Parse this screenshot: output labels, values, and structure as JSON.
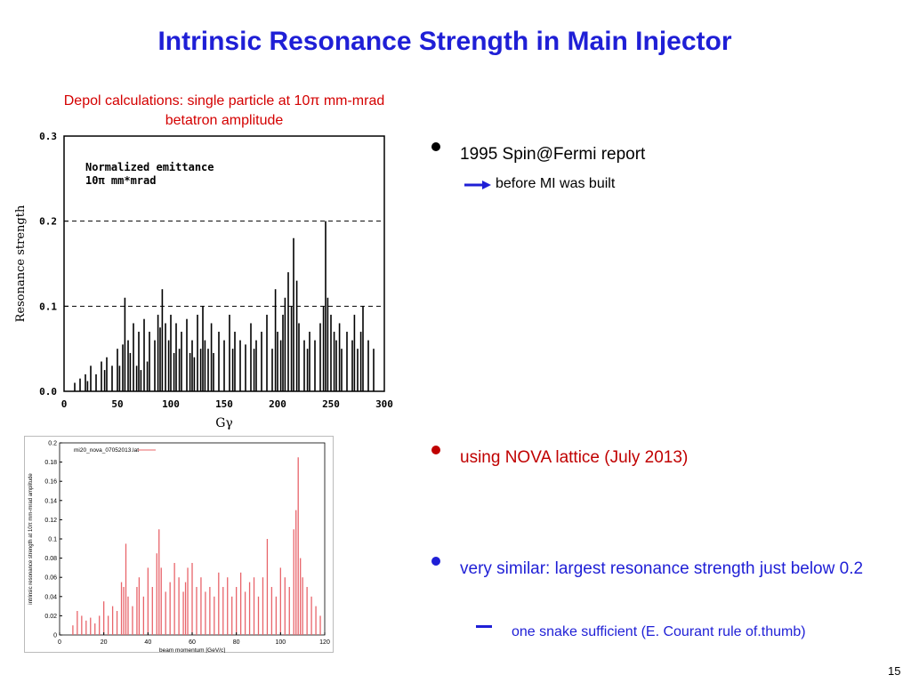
{
  "slide": {
    "title": "Intrinsic Resonance Strength in Main Injector",
    "subtitle_line1": "Depol calculations: single particle at 10π mm-mrad",
    "subtitle_line2": "betatron amplitude",
    "page_number": "15"
  },
  "bullets": {
    "b1": "1995 Spin@Fermi report",
    "b1_sub": "before MI was built",
    "b2": "using NOVA lattice (July 2013)",
    "b3": "very similar: largest resonance strength just below 0.2",
    "b3_sub": "one snake sufficient (E. Courant rule of.thumb)"
  },
  "colors": {
    "title": "#1f1fd6",
    "red": "#c00000",
    "blue": "#1f1fd6",
    "pink": "#e8646a"
  },
  "chart_data": [
    {
      "type": "bar",
      "ylabel": "Resonance strength",
      "xlabel": "Gγ",
      "annotation_line1": "Normalized emittance",
      "annotation_line2": "10π mm*mrad",
      "xlim": [
        0,
        300
      ],
      "ylim": [
        0,
        0.3
      ],
      "xticks": [
        0,
        50,
        100,
        150,
        200,
        250,
        300
      ],
      "yticks": [
        "0.0",
        "0.1",
        "0.2",
        "0.3"
      ],
      "reference_lines": [
        0.1,
        0.2
      ],
      "x": [
        10,
        15,
        20,
        22,
        25,
        30,
        35,
        38,
        40,
        45,
        50,
        52,
        55,
        57,
        60,
        62,
        65,
        68,
        70,
        72,
        75,
        78,
        80,
        85,
        88,
        90,
        92,
        95,
        98,
        100,
        103,
        105,
        108,
        110,
        115,
        118,
        120,
        122,
        125,
        128,
        130,
        132,
        135,
        138,
        140,
        145,
        150,
        155,
        158,
        160,
        165,
        170,
        175,
        178,
        180,
        185,
        190,
        195,
        198,
        200,
        203,
        205,
        207,
        210,
        213,
        215,
        218,
        220,
        225,
        228,
        230,
        235,
        240,
        243,
        245,
        247,
        250,
        253,
        255,
        258,
        260,
        265,
        270,
        272,
        275,
        278,
        280,
        285,
        290
      ],
      "values": [
        0.01,
        0.015,
        0.02,
        0.012,
        0.03,
        0.02,
        0.035,
        0.025,
        0.04,
        0.03,
        0.05,
        0.03,
        0.055,
        0.11,
        0.06,
        0.045,
        0.08,
        0.03,
        0.07,
        0.025,
        0.085,
        0.035,
        0.07,
        0.06,
        0.09,
        0.075,
        0.12,
        0.08,
        0.06,
        0.09,
        0.045,
        0.08,
        0.05,
        0.07,
        0.085,
        0.045,
        0.06,
        0.04,
        0.09,
        0.05,
        0.1,
        0.06,
        0.05,
        0.08,
        0.045,
        0.07,
        0.06,
        0.09,
        0.05,
        0.07,
        0.06,
        0.055,
        0.08,
        0.05,
        0.06,
        0.07,
        0.09,
        0.05,
        0.12,
        0.07,
        0.06,
        0.09,
        0.11,
        0.14,
        0.1,
        0.18,
        0.13,
        0.08,
        0.06,
        0.05,
        0.07,
        0.06,
        0.08,
        0.1,
        0.2,
        0.11,
        0.09,
        0.07,
        0.06,
        0.08,
        0.05,
        0.07,
        0.06,
        0.09,
        0.05,
        0.07,
        0.1,
        0.06,
        0.05
      ]
    },
    {
      "type": "bar",
      "ylabel": "intrinsic resonance strength at 10π mm-mrad amplitude",
      "xlabel": "beam momentum [GeV/c]",
      "legend": "mi20_nova_07052013.lat",
      "xlim": [
        0,
        120
      ],
      "ylim": [
        0,
        0.2
      ],
      "xticks": [
        0,
        20,
        40,
        60,
        80,
        100,
        120
      ],
      "yticks": [
        "0",
        "0.02",
        "0.04",
        "0.06",
        "0.08",
        "0.1",
        "0.12",
        "0.14",
        "0.16",
        "0.18",
        "0.2"
      ],
      "x": [
        6,
        8,
        10,
        12,
        14,
        16,
        18,
        20,
        22,
        24,
        26,
        28,
        29,
        30,
        31,
        33,
        35,
        36,
        38,
        40,
        42,
        44,
        45,
        46,
        48,
        50,
        52,
        54,
        56,
        57,
        58,
        60,
        62,
        64,
        66,
        68,
        70,
        72,
        74,
        76,
        78,
        80,
        82,
        84,
        86,
        88,
        90,
        92,
        94,
        96,
        98,
        100,
        102,
        104,
        106,
        107,
        108,
        109,
        110,
        112,
        114,
        116,
        118
      ],
      "values": [
        0.01,
        0.025,
        0.02,
        0.015,
        0.018,
        0.012,
        0.02,
        0.035,
        0.02,
        0.03,
        0.025,
        0.055,
        0.05,
        0.095,
        0.04,
        0.03,
        0.05,
        0.06,
        0.04,
        0.07,
        0.05,
        0.085,
        0.11,
        0.07,
        0.045,
        0.055,
        0.075,
        0.06,
        0.045,
        0.055,
        0.07,
        0.075,
        0.05,
        0.06,
        0.045,
        0.05,
        0.04,
        0.065,
        0.05,
        0.06,
        0.04,
        0.05,
        0.065,
        0.045,
        0.055,
        0.06,
        0.04,
        0.06,
        0.1,
        0.05,
        0.04,
        0.07,
        0.06,
        0.05,
        0.11,
        0.13,
        0.185,
        0.08,
        0.06,
        0.05,
        0.04,
        0.03,
        0.02
      ]
    }
  ]
}
